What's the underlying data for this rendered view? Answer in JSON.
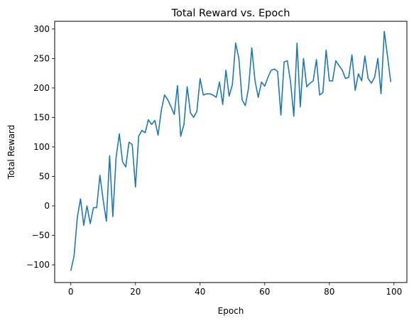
{
  "chart_data": {
    "type": "line",
    "title": "Total Reward vs. Epoch",
    "xlabel": "Epoch",
    "ylabel": "Total Reward",
    "xlim": [
      -5,
      104
    ],
    "ylim": [
      -130,
      313
    ],
    "xticks": [
      0,
      20,
      40,
      60,
      80,
      100
    ],
    "yticks": [
      -100,
      -50,
      0,
      50,
      100,
      150,
      200,
      250,
      300
    ],
    "grid": false,
    "legend": "none",
    "series": [
      {
        "color": "#1f77b4",
        "x": [
          0,
          1,
          2,
          3,
          4,
          5,
          6,
          7,
          8,
          9,
          10,
          11,
          12,
          13,
          14,
          15,
          16,
          17,
          18,
          19,
          20,
          21,
          22,
          23,
          24,
          25,
          26,
          27,
          28,
          29,
          30,
          31,
          32,
          33,
          34,
          35,
          36,
          37,
          38,
          39,
          40,
          41,
          42,
          43,
          44,
          45,
          46,
          47,
          48,
          49,
          50,
          51,
          52,
          53,
          54,
          55,
          56,
          57,
          58,
          59,
          60,
          61,
          62,
          63,
          64,
          65,
          66,
          67,
          68,
          69,
          70,
          71,
          72,
          73,
          74,
          75,
          76,
          77,
          78,
          79,
          80,
          81,
          82,
          83,
          84,
          85,
          86,
          87,
          88,
          89,
          90,
          91,
          92,
          93,
          94,
          95,
          96,
          97,
          98,
          99
        ],
        "y": [
          -110,
          -85,
          -20,
          12,
          -33,
          0,
          -30,
          -3,
          -3,
          52,
          10,
          -26,
          85,
          -18,
          82,
          122,
          75,
          66,
          108,
          104,
          32,
          118,
          128,
          124,
          146,
          138,
          145,
          120,
          162,
          188,
          180,
          168,
          155,
          204,
          118,
          138,
          202,
          158,
          150,
          160,
          216,
          188,
          190,
          190,
          188,
          184,
          210,
          172,
          230,
          186,
          206,
          276,
          250,
          180,
          170,
          200,
          268,
          212,
          184,
          210,
          203,
          218,
          230,
          232,
          228,
          154,
          244,
          246,
          210,
          152,
          276,
          168,
          250,
          202,
          208,
          212,
          248,
          188,
          192,
          264,
          212,
          212,
          246,
          238,
          230,
          216,
          218,
          256,
          196,
          224,
          212,
          254,
          216,
          208,
          218,
          250,
          190,
          296,
          254,
          210
        ]
      }
    ]
  }
}
